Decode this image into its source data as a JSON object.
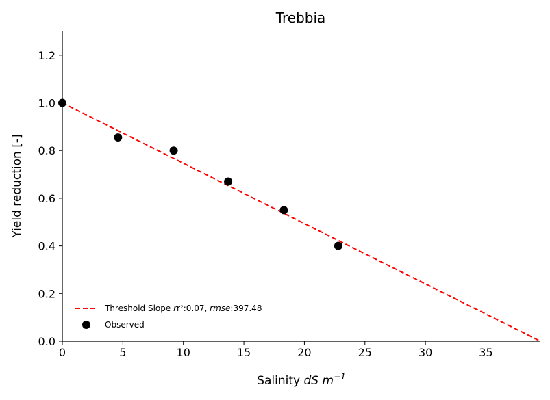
{
  "chart_data": {
    "type": "scatter",
    "title": "Trebbia",
    "xlabel": "Salinity",
    "xlabel_math": "dS m",
    "xlabel_exp": "−1",
    "ylabel": "Yield reduction [-]",
    "xlim": [
      0,
      39.5
    ],
    "ylim": [
      0,
      1.3
    ],
    "xticks": [
      "0",
      "5",
      "10",
      "15",
      "20",
      "25",
      "30",
      "35"
    ],
    "yticks": [
      "0.0",
      "0.2",
      "0.4",
      "0.6",
      "0.8",
      "1.0",
      "1.2"
    ],
    "grid": false,
    "legend_position": "lower-left",
    "series": [
      {
        "name": "Threshold Slope",
        "name_r2": "r²:0.07, ",
        "name_rmse_label": "rmse",
        "name_rmse_value": ":397.48",
        "kind": "line",
        "style": "dashed",
        "color": "#ff0000",
        "x": [
          0,
          39.5
        ],
        "y": [
          1.0,
          0.0
        ]
      },
      {
        "name": "Observed",
        "kind": "scatter",
        "color": "#000000",
        "x": [
          0,
          4.6,
          9.2,
          13.7,
          18.3,
          22.8
        ],
        "y": [
          1.0,
          0.855,
          0.8,
          0.67,
          0.55,
          0.4
        ]
      }
    ]
  }
}
